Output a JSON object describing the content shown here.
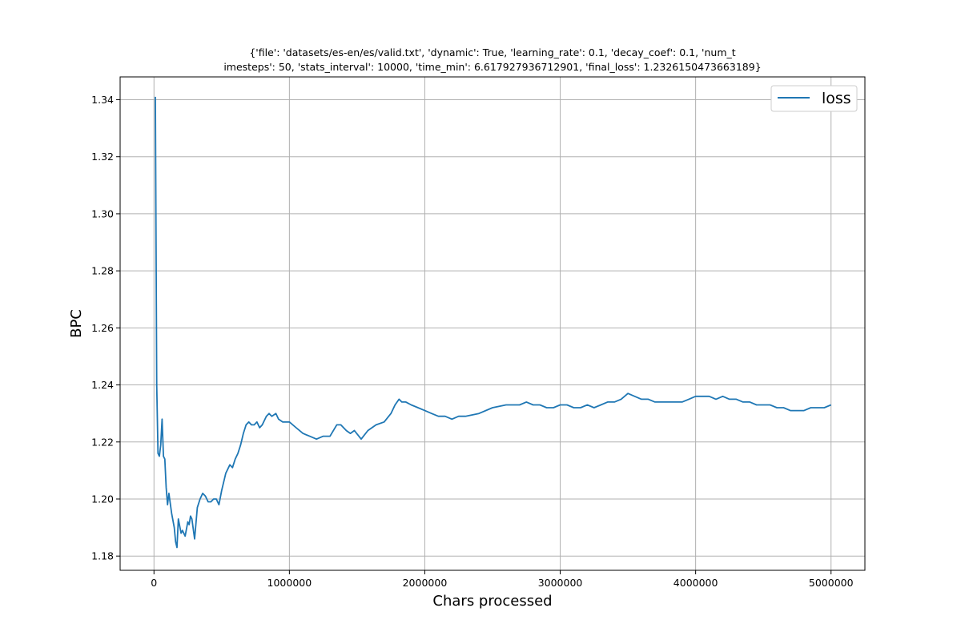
{
  "chart_data": {
    "type": "line",
    "title_line1": "{'file': 'datasets/es-en/es/valid.txt', 'dynamic': True, 'learning_rate': 0.1, 'decay_coef': 0.1, 'num_t",
    "title_line2": "imesteps': 50, 'stats_interval': 10000, 'time_min': 6.617927936712901, 'final_loss': 1.2326150473663189}",
    "xlabel": "Chars processed",
    "ylabel": "BPC",
    "xlim": [
      -250000,
      5250000
    ],
    "ylim": [
      1.175,
      1.348
    ],
    "x_ticks": [
      0,
      1000000,
      2000000,
      3000000,
      4000000,
      5000000
    ],
    "x_tick_labels": [
      "0",
      "1000000",
      "2000000",
      "3000000",
      "4000000",
      "5000000"
    ],
    "y_ticks": [
      1.18,
      1.2,
      1.22,
      1.24,
      1.26,
      1.28,
      1.3,
      1.32,
      1.34
    ],
    "y_tick_labels": [
      "1.18",
      "1.20",
      "1.22",
      "1.24",
      "1.26",
      "1.28",
      "1.30",
      "1.32",
      "1.34"
    ],
    "grid": true,
    "legend_position": "top-right",
    "colors": {
      "series": "#1f77b4",
      "grid": "#b0b0b0",
      "axis": "#000000"
    },
    "series": [
      {
        "name": "loss",
        "x": [
          10000,
          20000,
          30000,
          40000,
          50000,
          60000,
          70000,
          80000,
          90000,
          100000,
          110000,
          130000,
          150000,
          160000,
          170000,
          180000,
          200000,
          210000,
          230000,
          250000,
          260000,
          270000,
          280000,
          300000,
          320000,
          340000,
          360000,
          380000,
          400000,
          420000,
          440000,
          460000,
          480000,
          500000,
          530000,
          560000,
          580000,
          600000,
          620000,
          640000,
          660000,
          680000,
          700000,
          720000,
          740000,
          760000,
          780000,
          800000,
          830000,
          850000,
          870000,
          900000,
          920000,
          950000,
          970000,
          1000000,
          1050000,
          1100000,
          1150000,
          1200000,
          1250000,
          1300000,
          1350000,
          1380000,
          1420000,
          1450000,
          1480000,
          1530000,
          1580000,
          1640000,
          1700000,
          1750000,
          1780000,
          1810000,
          1830000,
          1860000,
          1900000,
          1950000,
          2000000,
          2050000,
          2100000,
          2150000,
          2200000,
          2250000,
          2300000,
          2400000,
          2500000,
          2600000,
          2650000,
          2700000,
          2750000,
          2800000,
          2850000,
          2900000,
          2950000,
          3000000,
          3050000,
          3100000,
          3150000,
          3200000,
          3250000,
          3300000,
          3350000,
          3400000,
          3450000,
          3500000,
          3550000,
          3600000,
          3650000,
          3700000,
          3750000,
          3800000,
          3850000,
          3900000,
          3950000,
          4000000,
          4050000,
          4100000,
          4150000,
          4200000,
          4250000,
          4300000,
          4350000,
          4400000,
          4450000,
          4500000,
          4550000,
          4600000,
          4650000,
          4700000,
          4750000,
          4800000,
          4850000,
          4900000,
          4950000,
          5000000
        ],
        "values": [
          1.341,
          1.24,
          1.216,
          1.215,
          1.219,
          1.228,
          1.215,
          1.214,
          1.204,
          1.198,
          1.202,
          1.195,
          1.19,
          1.185,
          1.183,
          1.193,
          1.188,
          1.189,
          1.187,
          1.192,
          1.191,
          1.194,
          1.193,
          1.186,
          1.197,
          1.2,
          1.202,
          1.201,
          1.199,
          1.199,
          1.2,
          1.2,
          1.198,
          1.203,
          1.209,
          1.212,
          1.211,
          1.214,
          1.216,
          1.219,
          1.223,
          1.226,
          1.227,
          1.226,
          1.226,
          1.227,
          1.225,
          1.226,
          1.229,
          1.23,
          1.229,
          1.23,
          1.228,
          1.227,
          1.227,
          1.227,
          1.225,
          1.223,
          1.222,
          1.221,
          1.222,
          1.222,
          1.226,
          1.226,
          1.224,
          1.223,
          1.224,
          1.221,
          1.224,
          1.226,
          1.227,
          1.23,
          1.233,
          1.235,
          1.234,
          1.234,
          1.233,
          1.232,
          1.231,
          1.23,
          1.229,
          1.229,
          1.228,
          1.229,
          1.229,
          1.23,
          1.232,
          1.233,
          1.233,
          1.233,
          1.234,
          1.233,
          1.233,
          1.232,
          1.232,
          1.233,
          1.233,
          1.232,
          1.232,
          1.233,
          1.232,
          1.233,
          1.234,
          1.234,
          1.235,
          1.237,
          1.236,
          1.235,
          1.235,
          1.234,
          1.234,
          1.234,
          1.234,
          1.234,
          1.235,
          1.236,
          1.236,
          1.236,
          1.235,
          1.236,
          1.235,
          1.235,
          1.234,
          1.234,
          1.233,
          1.233,
          1.233,
          1.232,
          1.232,
          1.231,
          1.231,
          1.231,
          1.232,
          1.232,
          1.232,
          1.233
        ]
      }
    ]
  }
}
